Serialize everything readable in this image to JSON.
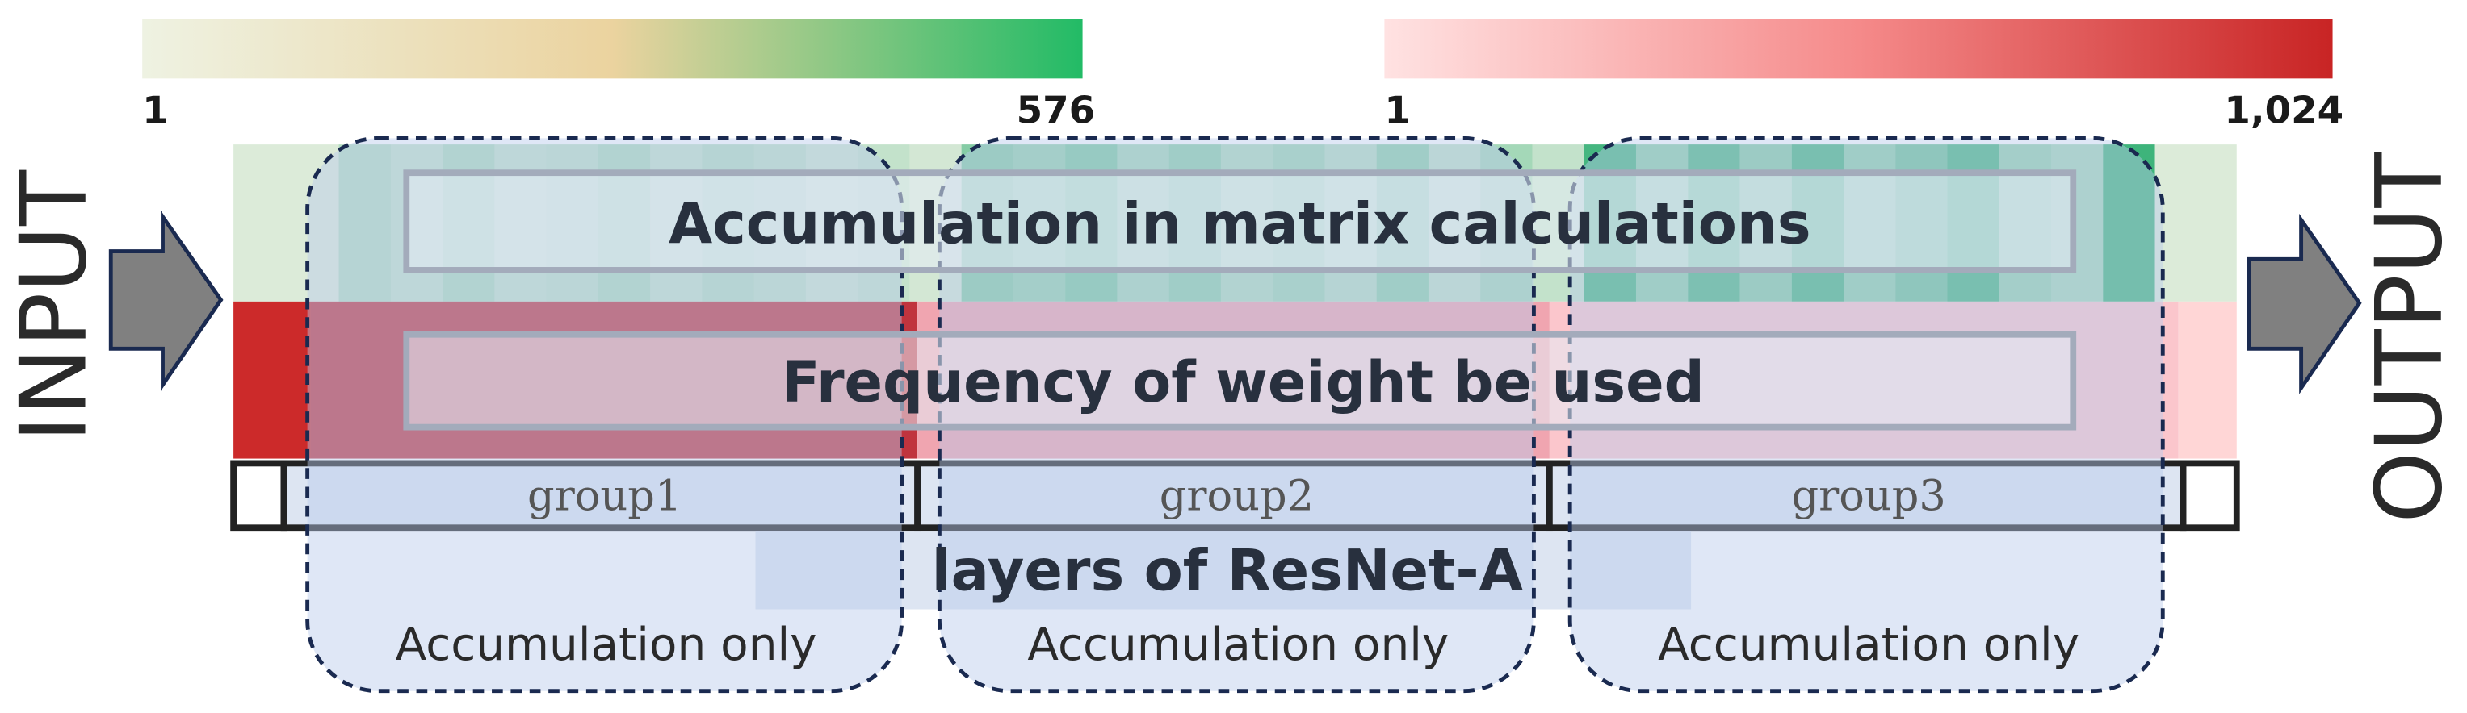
{
  "scales": [
    {
      "min_label": "1",
      "max_label": "576"
    },
    {
      "min_label": "1",
      "max_label": "1,024"
    }
  ],
  "input_label": "INPUT",
  "output_label": "OUTPUT",
  "rows": [
    {
      "title": "Accumulation in matrix calculations"
    },
    {
      "title": "Frequency of weight be used"
    }
  ],
  "groups": [
    "group1",
    "group2",
    "group3"
  ],
  "layers_label": "layers of ResNet-A",
  "regions": [
    "Accumulation only",
    "Accumulation only",
    "Accumulation only"
  ]
}
